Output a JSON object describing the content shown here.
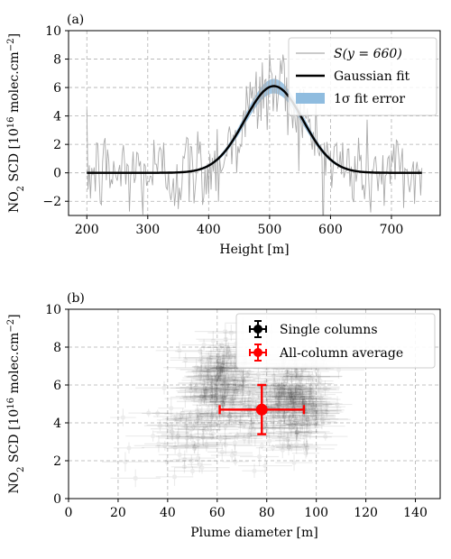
{
  "chart_data": [
    {
      "panel_label": "(a)",
      "type": "line",
      "xlabel": "Height [m]",
      "ylabel_parts": {
        "pre": "NO",
        "sub": "2",
        "mid": " SCD [10",
        "sup": "16",
        "mid2": " molec.cm",
        "sup2": "−2",
        "post": "]"
      },
      "xlim": [
        170,
        780
      ],
      "ylim": [
        -3,
        10
      ],
      "xticks": [
        200,
        300,
        400,
        500,
        600,
        700
      ],
      "yticks": [
        -2,
        0,
        2,
        4,
        6,
        8,
        10
      ],
      "grid": true,
      "legend_placement": "top-right",
      "legend": [
        {
          "label": "S(y = 660)",
          "style": "line",
          "color": "#aaaaaa"
        },
        {
          "label": "Gaussian fit",
          "style": "line",
          "color": "#000000"
        },
        {
          "label": "1σ fit error",
          "style": "patch",
          "color": "#8fbcdf"
        }
      ],
      "series": [
        {
          "name": "S(y = 660)",
          "kind": "noisy_signal",
          "x_range": [
            200,
            750
          ],
          "step": 2,
          "color": "#aaaaaa",
          "noise_amplitude_estimate": 1.6
        },
        {
          "name": "Gaussian fit",
          "kind": "gaussian",
          "amplitude": 6.1,
          "center": 507,
          "sigma": 48,
          "offset": 0.0,
          "x_range": [
            200,
            750
          ],
          "color": "#000000"
        },
        {
          "name": "1σ fit error",
          "kind": "band",
          "half_width_at_peak": 0.45,
          "color": "#8fbcdf"
        }
      ]
    },
    {
      "panel_label": "(b)",
      "type": "scatter",
      "xlabel": "Plume diameter [m]",
      "ylabel_parts": {
        "pre": "NO",
        "sub": "2",
        "mid": " SCD [10",
        "sup": "16",
        "mid2": " molec.cm",
        "sup2": "−2",
        "post": "]"
      },
      "xlim": [
        0,
        150
      ],
      "ylim": [
        0,
        10
      ],
      "xticks": [
        0,
        20,
        40,
        60,
        80,
        100,
        120,
        140
      ],
      "yticks": [
        0,
        2,
        4,
        6,
        8,
        10
      ],
      "grid": true,
      "legend_placement": "top-right",
      "legend": [
        {
          "label": "Single columns",
          "style": "errorbar",
          "color": "#000000"
        },
        {
          "label": "All-column average",
          "style": "errorbar",
          "color": "#ff0000"
        }
      ],
      "series": [
        {
          "name": "Single columns",
          "kind": "point_cloud",
          "color": "#000000",
          "clusters": [
            {
              "x_mean": 62,
              "x_sd": 6,
              "y_mean": 6.2,
              "y_sd": 1.1,
              "count": 190
            },
            {
              "x_mean": 91,
              "x_sd": 6,
              "y_mean": 5.2,
              "y_sd": 1.2,
              "count": 220
            },
            {
              "x_mean": 50,
              "x_sd": 11,
              "y_mean": 3.2,
              "y_sd": 1.1,
              "count": 70
            },
            {
              "x_mean": 76,
              "x_sd": 14,
              "y_mean": 4.5,
              "y_sd": 1.0,
              "count": 90
            }
          ],
          "typical_x_error": 9,
          "typical_y_error": 0.35
        },
        {
          "name": "All-column average",
          "kind": "errorbar_point",
          "color": "#ff0000",
          "x": 78,
          "y": 4.7,
          "x_err": 17,
          "y_err": 1.3
        }
      ]
    }
  ]
}
